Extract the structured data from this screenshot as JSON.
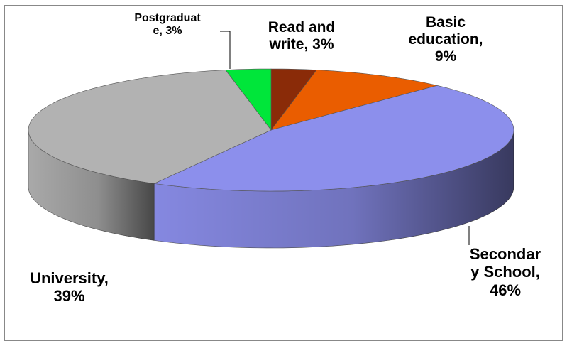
{
  "chart_data": {
    "type": "pie",
    "values": [
      3,
      9,
      46,
      39,
      3
    ],
    "value_labels": [
      "Read and write, 3%",
      "Basic education, 9%",
      "Secondary School, 46%",
      "University, 39%",
      "Postgraduate, 3%"
    ],
    "colors": [
      "#8a2b08",
      "#ea5d00",
      "#8c8fec",
      "#b2b2b2",
      "#00e63a"
    ]
  }
}
